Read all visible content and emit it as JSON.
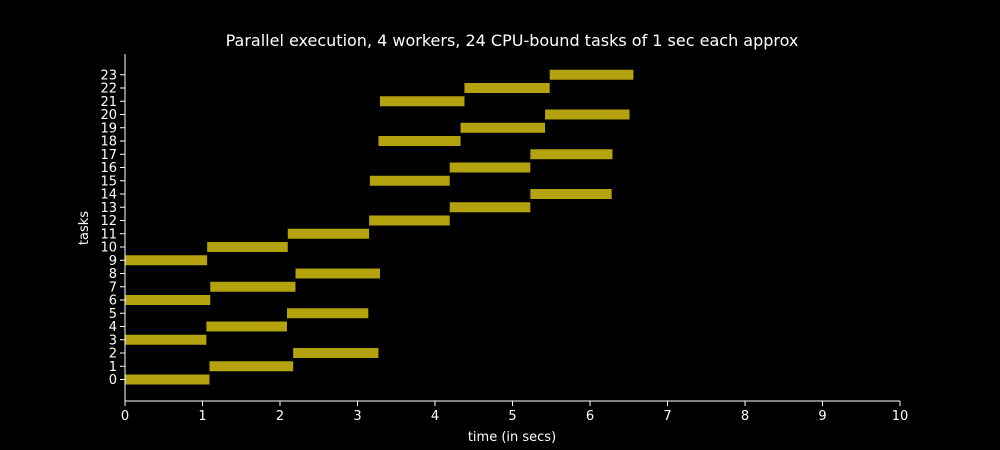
{
  "chart_data": {
    "type": "bar",
    "orientation": "horizontal-gantt",
    "title": "Parallel execution, 4 workers, 24 CPU-bound tasks of 1 sec each approx",
    "xlabel": "time (in secs)",
    "ylabel": "tasks",
    "xlim": [
      0,
      10
    ],
    "ylim": [
      -1,
      23.5
    ],
    "xticks": [
      "0",
      "1",
      "2",
      "3",
      "4",
      "5",
      "6",
      "7",
      "8",
      "9",
      "10"
    ],
    "categories": [
      "0",
      "1",
      "2",
      "3",
      "4",
      "5",
      "6",
      "7",
      "8",
      "9",
      "10",
      "11",
      "12",
      "13",
      "14",
      "15",
      "16",
      "17",
      "18",
      "19",
      "20",
      "21",
      "22",
      "23"
    ],
    "tasks": [
      {
        "task": 0,
        "start": 0.0,
        "end": 1.09
      },
      {
        "task": 1,
        "start": 1.09,
        "end": 2.17
      },
      {
        "task": 2,
        "start": 2.17,
        "end": 3.27
      },
      {
        "task": 3,
        "start": 0.0,
        "end": 1.05
      },
      {
        "task": 4,
        "start": 1.05,
        "end": 2.09
      },
      {
        "task": 5,
        "start": 2.09,
        "end": 3.14
      },
      {
        "task": 6,
        "start": 0.0,
        "end": 1.1
      },
      {
        "task": 7,
        "start": 1.1,
        "end": 2.2
      },
      {
        "task": 8,
        "start": 2.2,
        "end": 3.29
      },
      {
        "task": 9,
        "start": 0.0,
        "end": 1.06
      },
      {
        "task": 10,
        "start": 1.06,
        "end": 2.1
      },
      {
        "task": 11,
        "start": 2.1,
        "end": 3.15
      },
      {
        "task": 12,
        "start": 3.15,
        "end": 4.19
      },
      {
        "task": 13,
        "start": 4.19,
        "end": 5.23
      },
      {
        "task": 14,
        "start": 5.23,
        "end": 6.28
      },
      {
        "task": 15,
        "start": 3.16,
        "end": 4.19
      },
      {
        "task": 16,
        "start": 4.19,
        "end": 5.23
      },
      {
        "task": 17,
        "start": 5.23,
        "end": 6.29
      },
      {
        "task": 18,
        "start": 3.27,
        "end": 4.33
      },
      {
        "task": 19,
        "start": 4.33,
        "end": 5.42
      },
      {
        "task": 20,
        "start": 5.42,
        "end": 6.51
      },
      {
        "task": 21,
        "start": 3.29,
        "end": 4.38
      },
      {
        "task": 22,
        "start": 4.38,
        "end": 5.48
      },
      {
        "task": 23,
        "start": 5.48,
        "end": 6.56
      }
    ],
    "bar_color": "#b4a20f",
    "background": "#000000",
    "axis_color": "#ffffff",
    "grid": false,
    "legend": "none"
  }
}
